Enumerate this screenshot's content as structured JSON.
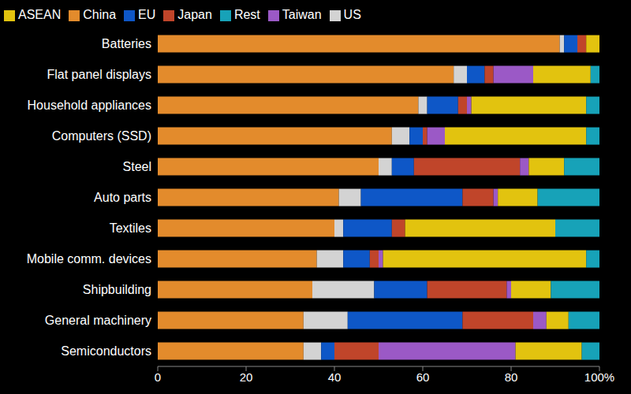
{
  "chart_data": {
    "type": "bar",
    "orientation": "horizontal",
    "stacked": true,
    "grid": false,
    "legend": "top-left",
    "categories": [
      "Batteries",
      "Flat panel displays",
      "Household appliances",
      "Computers (SSD)",
      "Steel",
      "Auto parts",
      "Textiles",
      "Mobile comm. devices",
      "Shipbuilding",
      "General machinery",
      "Semiconductors"
    ],
    "series": [
      {
        "name": "China",
        "color": "#e38b2c",
        "values": [
          91,
          67,
          59,
          53,
          50,
          41,
          40,
          36,
          35,
          33,
          33
        ]
      },
      {
        "name": "US",
        "color": "#d3d3d3",
        "values": [
          1,
          3,
          2,
          4,
          3,
          5,
          2,
          6,
          14,
          10,
          4
        ]
      },
      {
        "name": "EU",
        "color": "#0e57c7",
        "values": [
          3,
          4,
          7,
          3,
          5,
          23,
          11,
          6,
          12,
          26,
          3
        ]
      },
      {
        "name": "Japan",
        "color": "#c0452a",
        "values": [
          2,
          2,
          2,
          1,
          24,
          7,
          3,
          2,
          18,
          16,
          10
        ]
      },
      {
        "name": "Taiwan",
        "color": "#9b59c6",
        "values": [
          0,
          9,
          1,
          4,
          2,
          1,
          0,
          1,
          1,
          3,
          31
        ]
      },
      {
        "name": "ASEAN",
        "color": "#e2c30f",
        "values": [
          3,
          13,
          26,
          32,
          8,
          9,
          34,
          46,
          9,
          5,
          15
        ]
      },
      {
        "name": "Rest",
        "color": "#17a2b8",
        "values": [
          0,
          2,
          3,
          3,
          8,
          14,
          10,
          3,
          11,
          7,
          4
        ]
      }
    ],
    "xlim": [
      0,
      100
    ],
    "xticks": [
      0,
      20,
      40,
      60,
      80,
      {
        "value": 100,
        "label": "100%"
      }
    ]
  }
}
